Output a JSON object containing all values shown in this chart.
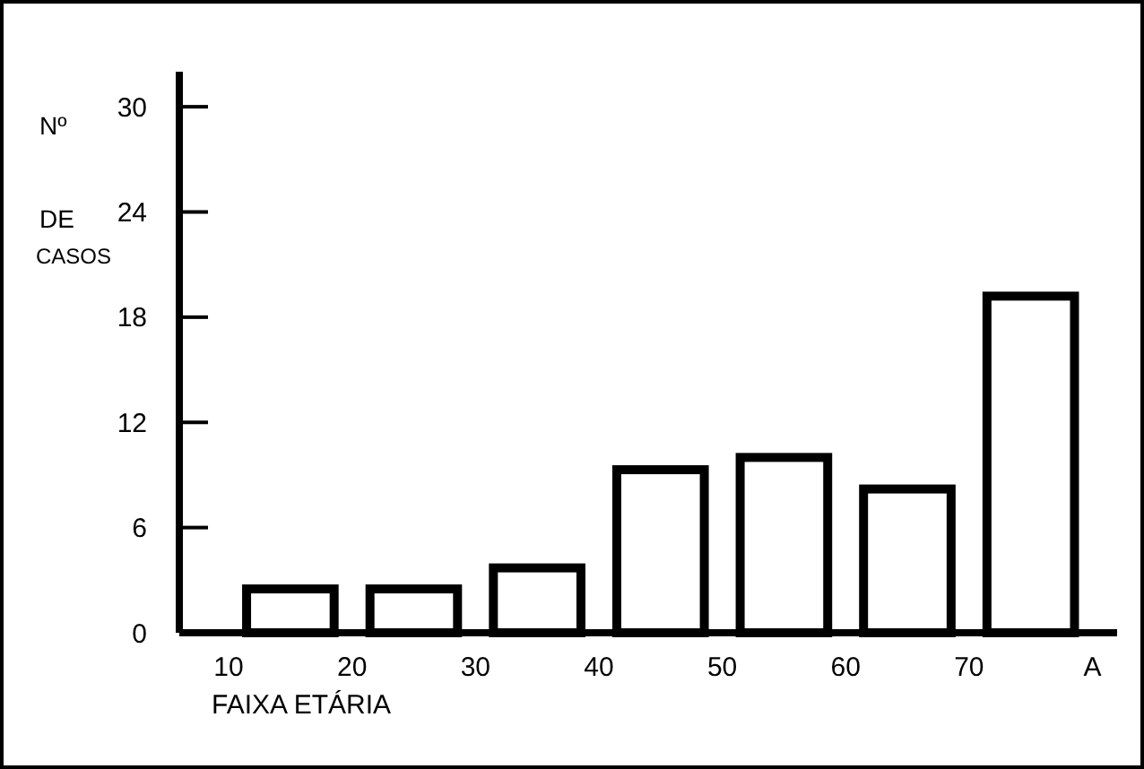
{
  "chart_data": {
    "type": "histogram",
    "xlabel": "FAIXA ETÁRIA",
    "ylabel": "Nº DE CASOS",
    "bins": [
      10,
      20,
      30,
      40,
      50,
      60,
      70,
      80
    ],
    "values": [
      2.5,
      2.5,
      3.7,
      9.3,
      10,
      8.2,
      19.2
    ],
    "color": "#ffffff",
    "xlim": [
      6,
      82
    ],
    "xticks": [
      10,
      20,
      30,
      40,
      50,
      60,
      70,
      {
        "value": 80,
        "label": "A"
      }
    ],
    "ylim": [
      0,
      32
    ],
    "yticks": [
      0,
      6,
      12,
      18,
      24,
      30
    ],
    "grid": false
  }
}
